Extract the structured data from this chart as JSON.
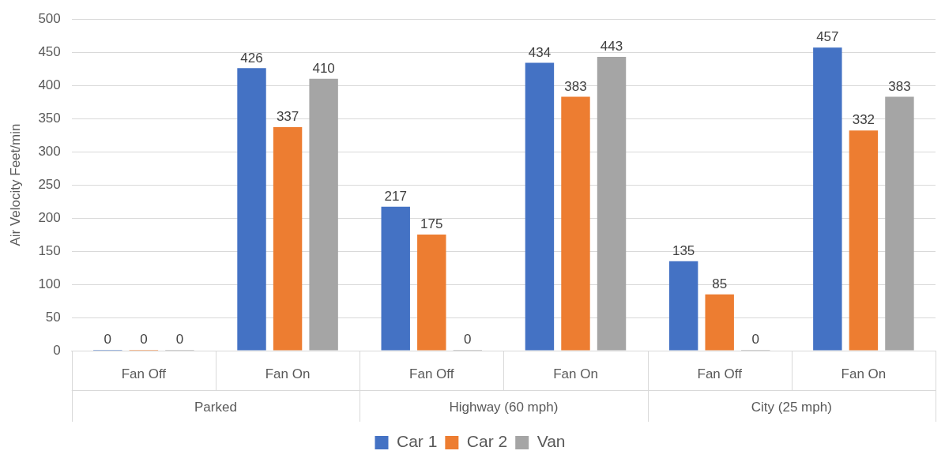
{
  "chart_data": {
    "type": "bar",
    "ylabel": "Air Velocity Feet/min",
    "categories": [
      "Fan Off",
      "Fan On",
      "Fan Off",
      "Fan On",
      "Fan Off",
      "Fan On"
    ],
    "annotations": [
      "Parked",
      "Highway (60 mph)",
      "City (25 mph)"
    ],
    "series": [
      {
        "name": "Car 1",
        "color": "#4472c4",
        "values": [
          0,
          426,
          217,
          434,
          135,
          457
        ]
      },
      {
        "name": "Car 2",
        "color": "#ed7d31",
        "values": [
          0,
          337,
          175,
          383,
          85,
          332
        ]
      },
      {
        "name": "Van",
        "color": "#a5a5a5",
        "values": [
          0,
          410,
          0,
          443,
          0,
          383
        ]
      }
    ],
    "ylim": [
      0,
      500
    ],
    "yticks": [
      0,
      50,
      100,
      150,
      200,
      250,
      300,
      350,
      400,
      450,
      500
    ],
    "grid": "y",
    "legend": "bottom",
    "data_labels": true
  }
}
